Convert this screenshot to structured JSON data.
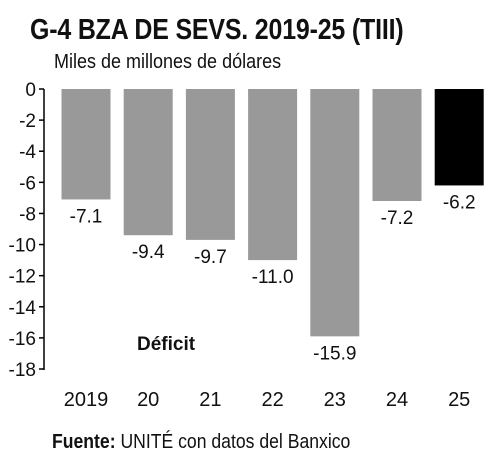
{
  "header": {
    "title": "G-4 BZA DE SEVS. 2019-25 (TIII)",
    "subtitle": "Miles de millones de dólares"
  },
  "footer": {
    "source_label": "Fuente:",
    "source_text": " UNITÉ con datos del Banxico"
  },
  "chart_data": {
    "type": "bar",
    "title": "G-4 BZA DE SEVS. 2019-25 (TIII)",
    "subtitle": "Miles de millones de dólares",
    "categories": [
      "2019",
      "20",
      "21",
      "22",
      "23",
      "24",
      "25"
    ],
    "values": [
      -7.1,
      -9.4,
      -9.7,
      -11.0,
      -15.9,
      -7.2,
      -6.2
    ],
    "value_labels": [
      "-7.1",
      "-9.4",
      "-9.7",
      "-11.0",
      "-15.9",
      "-7.2",
      "-6.2"
    ],
    "ylim": [
      -18,
      0
    ],
    "yticks": [
      0,
      -2,
      -4,
      -6,
      -8,
      -10,
      -12,
      -14,
      -16,
      -18
    ],
    "annotation": "Déficit",
    "colors": {
      "bar": "#999999",
      "highlight": "#000000",
      "axis": "#000000"
    },
    "highlight_index": 6,
    "grid": false
  }
}
